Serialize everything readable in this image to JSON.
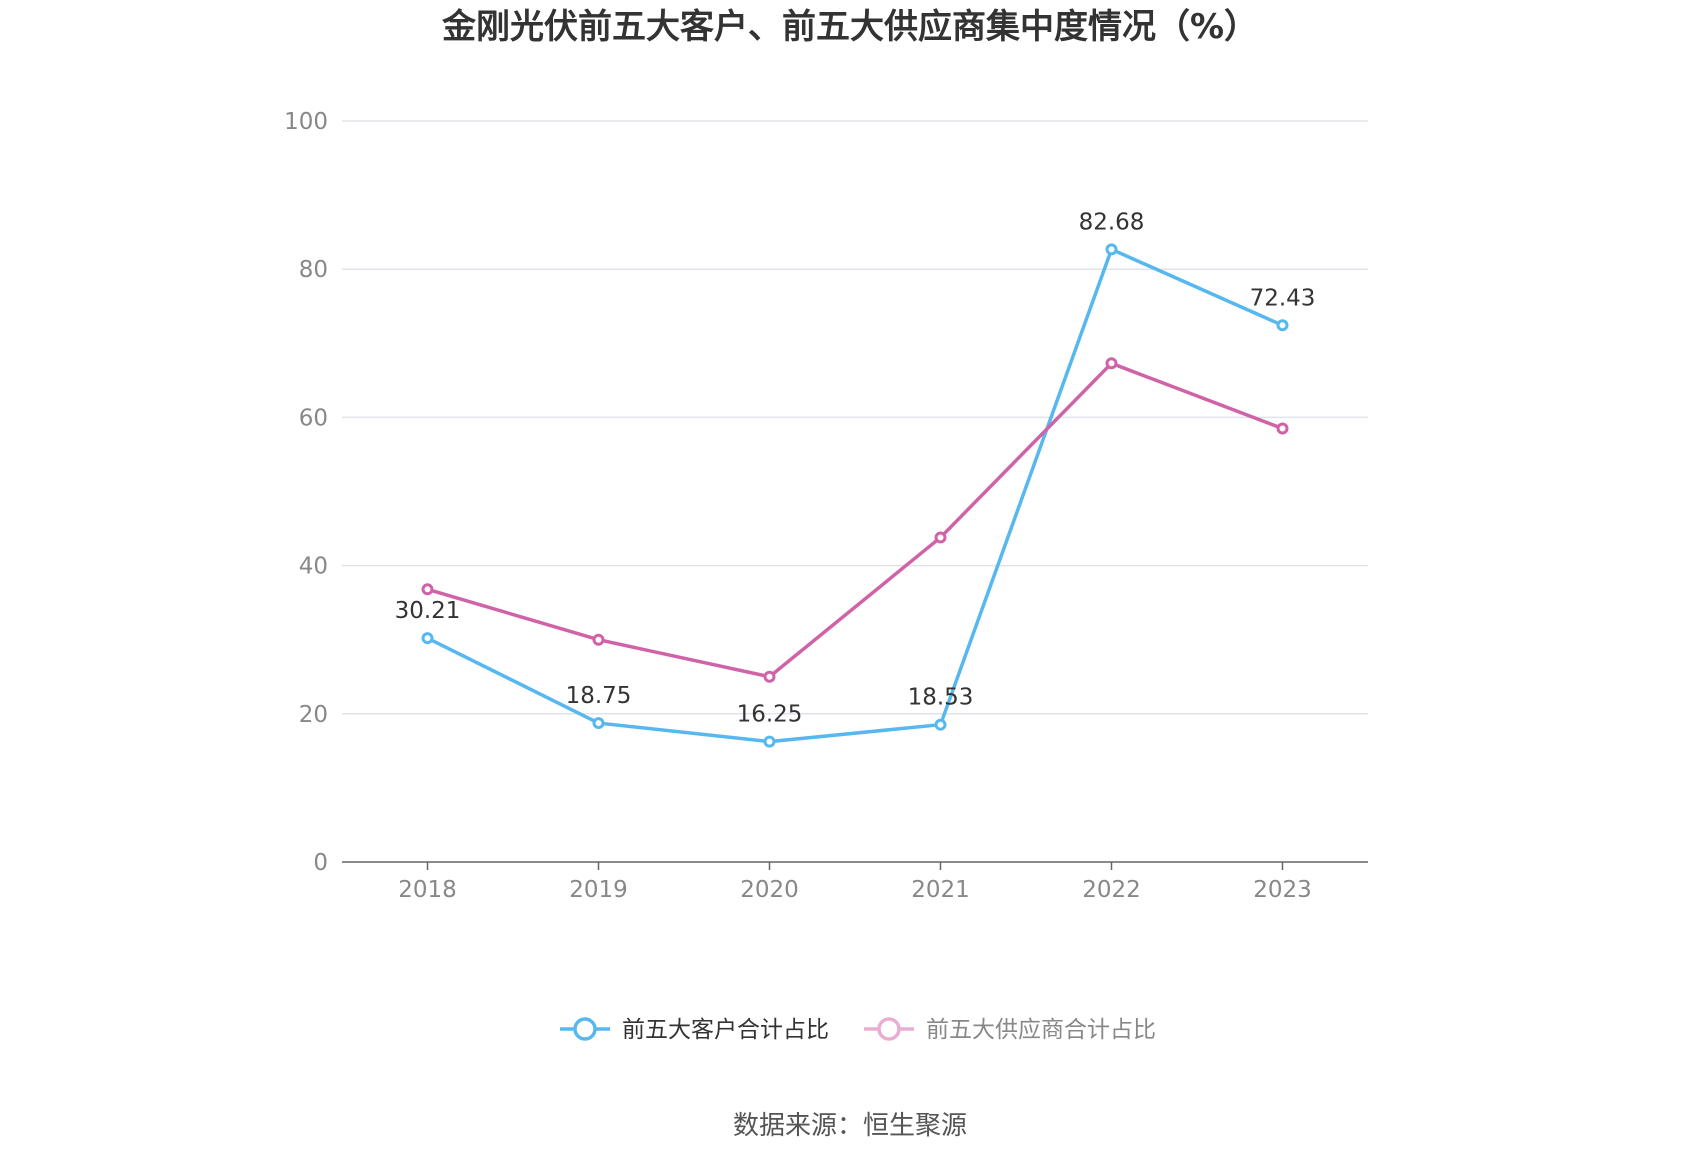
{
  "chart_data": {
    "type": "line",
    "title": "金刚光伏前五大客户、前五大供应商集中度情况（%）",
    "categories": [
      "2018",
      "2019",
      "2020",
      "2021",
      "2022",
      "2023"
    ],
    "ylim": [
      0,
      100
    ],
    "yticks": [
      "0",
      "20",
      "40",
      "60",
      "80",
      "100"
    ],
    "grid": true,
    "legend_position": "bottom-center",
    "series": [
      {
        "name": "前五大客户合计占比",
        "color": "#56b8ef",
        "values": [
          30.21,
          18.75,
          16.25,
          18.53,
          82.68,
          72.43
        ],
        "labels": [
          "30.21",
          "18.75",
          "16.25",
          "18.53",
          "82.68",
          "72.43"
        ]
      },
      {
        "name": "前五大供应商合计占比",
        "color": "#d063a8",
        "values": [
          36.8,
          30.0,
          25.0,
          43.8,
          67.3,
          58.5
        ]
      }
    ],
    "source": "数据来源：恒生聚源"
  }
}
